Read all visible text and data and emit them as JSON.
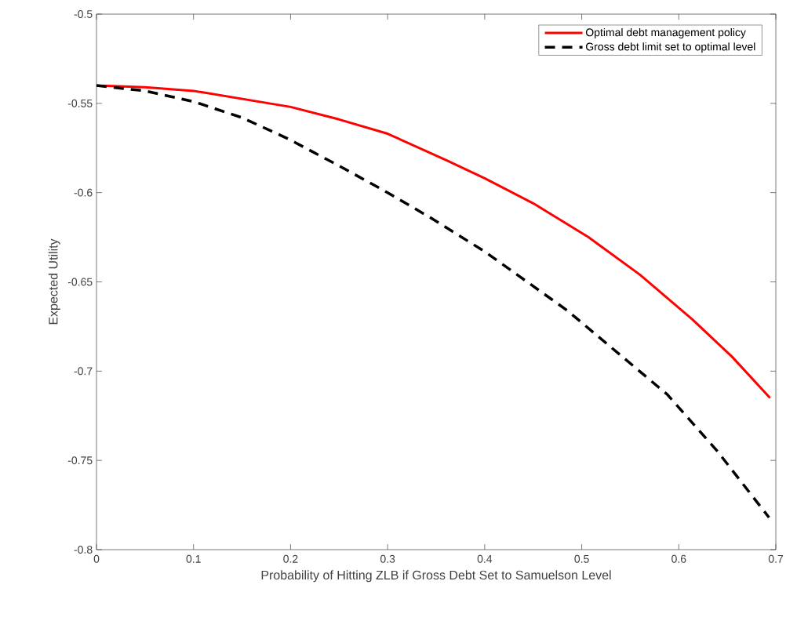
{
  "chart_data": {
    "type": "line",
    "xlabel": "Probability of Hitting ZLB if Gross Debt Set to Samuelson Level",
    "ylabel": "Expected Utility",
    "xlim": [
      0,
      0.7
    ],
    "xticks": [
      0,
      0.1,
      0.2,
      0.3,
      0.4,
      0.5,
      0.6,
      0.7
    ],
    "ylim": [
      -0.8,
      -0.5
    ],
    "yticks": [
      -0.8,
      -0.75,
      -0.7,
      -0.65,
      -0.6,
      -0.55,
      -0.5
    ],
    "grid": false,
    "legend": "top right",
    "series": [
      {
        "name": "Optimal debt management policy",
        "color": "#ff0000",
        "line_style": "solid",
        "x": [
          0,
          0.05,
          0.1,
          0.2,
          0.25,
          0.3,
          0.361,
          0.4,
          0.45,
          0.507,
          0.56,
          0.614,
          0.655,
          0.694
        ],
        "values": [
          -0.54,
          -0.541,
          -0.543,
          -0.552,
          -0.559,
          -0.567,
          -0.582,
          -0.592,
          -0.606,
          -0.625,
          -0.646,
          -0.671,
          -0.692,
          -0.715
        ]
      },
      {
        "name": "Gross debt limit set to optimal level",
        "color": "#000000",
        "line_style": "dashed",
        "x": [
          0,
          0.05,
          0.1,
          0.15,
          0.198,
          0.25,
          0.3,
          0.344,
          0.4,
          0.485,
          0.588,
          0.64,
          0.693
        ],
        "values": [
          -0.54,
          -0.543,
          -0.549,
          -0.558,
          -0.57,
          -0.585,
          -0.6,
          -0.614,
          -0.633,
          -0.666,
          -0.713,
          -0.745,
          -0.782
        ]
      }
    ]
  }
}
